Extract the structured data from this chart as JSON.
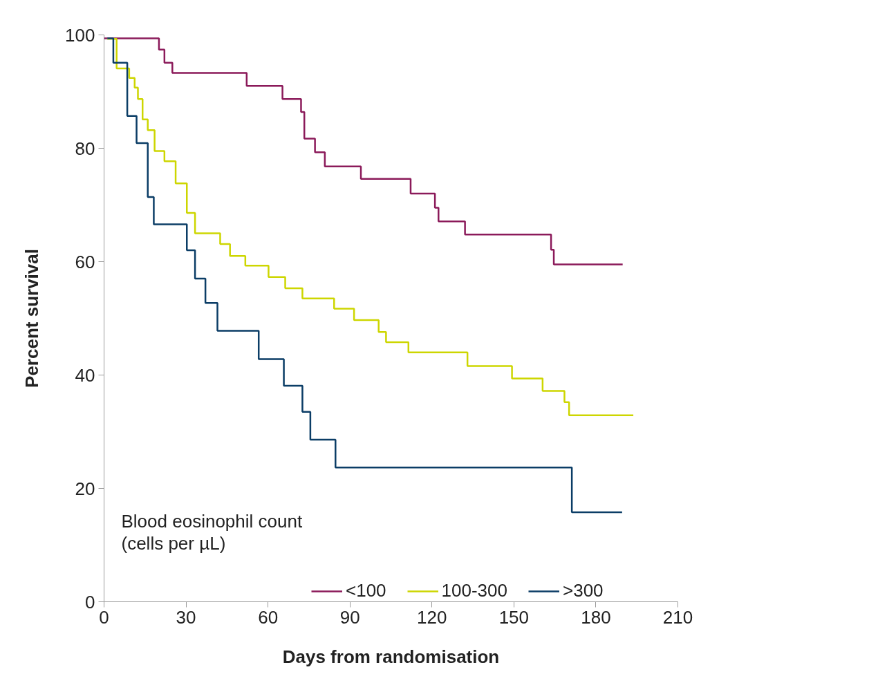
{
  "chart_data": {
    "type": "step",
    "xlabel": "Days from randomisation",
    "ylabel": "Percent survival",
    "legend_title": "Blood eosinophil count\n (cells per µL)",
    "xlim": [
      0,
      210
    ],
    "xticks": [
      0,
      30,
      60,
      90,
      120,
      150,
      180,
      210
    ],
    "ylim": [
      0,
      100
    ],
    "yticks": [
      0,
      20,
      40,
      60,
      80,
      100
    ],
    "grid": false,
    "legend": "bottom",
    "marker": "none",
    "line_style": "solid",
    "series": [
      {
        "name": "<100",
        "color": "#8b1a5a",
        "x": [
          0,
          20.1,
          22.1,
          25.0,
          52.2,
          65.3,
          72.1,
          73.3,
          77.2,
          80.8,
          94.0,
          112.2,
          121.1,
          122.4,
          132.1,
          163.6,
          164.6,
          189.8
        ],
        "values": [
          99.4,
          97.4,
          95.1,
          93.3,
          91.0,
          88.7,
          86.4,
          81.7,
          79.3,
          76.8,
          74.6,
          72.0,
          69.5,
          67.1,
          64.8,
          62.1,
          59.5,
          59.5
        ]
      },
      {
        "name": "100-300",
        "color": "#cdd600",
        "x": [
          1.2,
          4.6,
          9.2,
          11.2,
          12.4,
          14.1,
          16.0,
          18.5,
          22.1,
          26.2,
          30.3,
          33.3,
          42.5,
          46.1,
          51.7,
          60.2,
          66.3,
          72.6,
          84.2,
          91.5,
          100.5,
          103.2,
          111.4,
          133.0,
          149.3,
          160.5,
          168.5,
          170.2,
          193.7
        ],
        "values": [
          99.3,
          94.1,
          92.4,
          90.7,
          88.7,
          85.1,
          83.2,
          79.5,
          77.7,
          73.8,
          68.6,
          65.0,
          63.1,
          61.0,
          59.3,
          57.3,
          55.3,
          53.5,
          51.7,
          49.7,
          47.6,
          45.8,
          44.0,
          41.6,
          39.4,
          37.2,
          35.2,
          32.9,
          32.9
        ]
      },
      {
        "name": ">300",
        "color": "#0b3d66",
        "x": [
          1.2,
          3.4,
          8.5,
          11.9,
          16.0,
          18.2,
          30.3,
          33.3,
          37.1,
          41.5,
          56.6,
          65.8,
          72.6,
          75.5,
          84.7,
          171.2,
          189.6
        ],
        "values": [
          99.4,
          95.1,
          85.7,
          80.9,
          71.4,
          66.6,
          62.0,
          57.0,
          52.7,
          47.8,
          42.8,
          38.1,
          33.5,
          28.6,
          23.7,
          15.8,
          15.8
        ]
      }
    ]
  }
}
